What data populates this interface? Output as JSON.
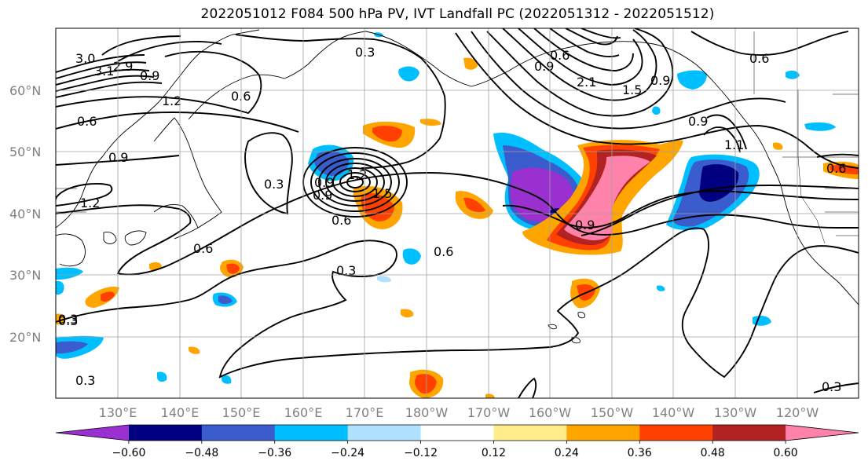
{
  "title": "2022051012 F084 500 hPa PV, IVT Landfall PC (2022051312 - 2022051512)",
  "lat_labels": [
    "60°N",
    "50°N",
    "40°N",
    "30°N",
    "20°N"
  ],
  "lon_labels": [
    "130°E",
    "140°E",
    "150°E",
    "160°E",
    "170°E",
    "180°W",
    "170°W",
    "160°W",
    "150°W",
    "140°W",
    "130°W",
    "120°W"
  ],
  "colorbar": {
    "colors": [
      "#9b30d0",
      "#000080",
      "#3a5ccc",
      "#00bfff",
      "#b0e2ff",
      "#ffffff",
      "#ffec8b",
      "#ffa500",
      "#ff4000",
      "#b22222",
      "#ff82ab"
    ],
    "tick_labels": [
      "−0.60",
      "−0.48",
      "−0.36",
      "−0.24",
      "−0.12",
      "0.12",
      "0.24",
      "0.36",
      "0.48",
      "0.60"
    ]
  },
  "contour_labels": [
    "3.0",
    "3.1",
    "2.9",
    "0.9",
    "1.2",
    "0.6",
    "0.6",
    "0.9",
    "1.2",
    "0.3",
    "0.6",
    "0.3",
    "0.3",
    "0.6",
    "0.3",
    "0.3",
    "0.3",
    "0.9",
    "0.6",
    "0.9",
    "0.6",
    "2.1",
    "1.5",
    "0.9",
    "1.1",
    "0.9",
    "0.9",
    "0.6",
    "1.2",
    "1.5",
    "0.6",
    "0.9",
    "0.3"
  ]
}
